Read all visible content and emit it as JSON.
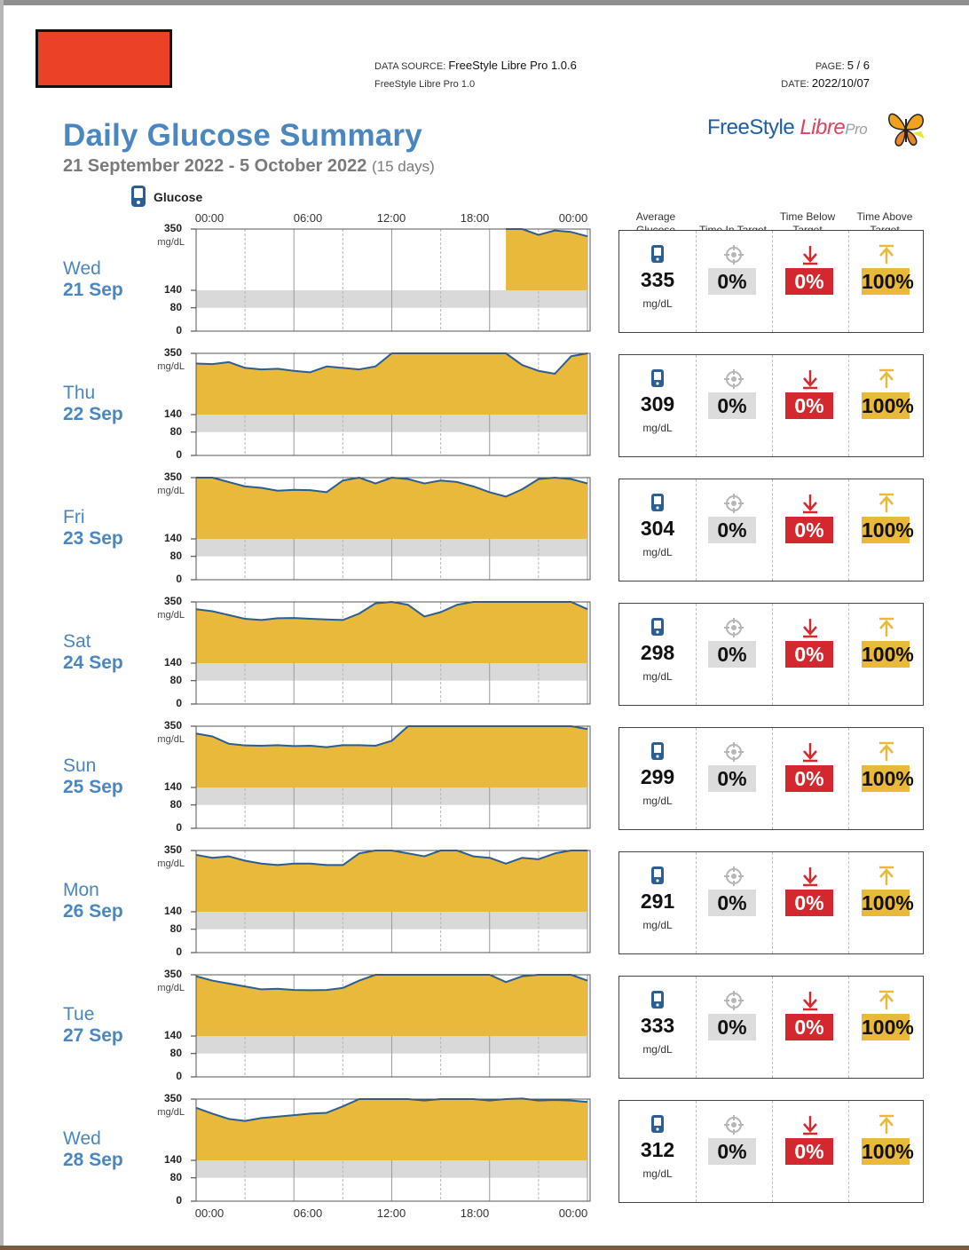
{
  "header": {
    "data_source_label": "DATA SOURCE:",
    "data_source_value": "FreeStyle Libre Pro 1.0.6",
    "data_source_sub": "FreeStyle Libre Pro 1.0",
    "page_label": "PAGE:",
    "page_value": "5 / 6",
    "date_label": "DATE:",
    "date_value": "2022/10/07"
  },
  "logo": {
    "part1": "FreeStyle",
    "part2": "Libre",
    "part3": "Pro"
  },
  "title": "Daily Glucose Summary",
  "subtitle": {
    "range": "21 September 2022 - 5 October 2022",
    "days": "(15 days)"
  },
  "legend": {
    "label": "Glucose"
  },
  "stats_headers": {
    "average": "Average Glucose",
    "in_target": "Time In Target",
    "below": "Time Below Target",
    "above": "Time Above Target"
  },
  "time_axis": [
    "00:00",
    "06:00",
    "12:00",
    "18:00",
    "00:00"
  ],
  "y_axis": {
    "ticks": [
      "350",
      "140",
      "80",
      "0"
    ],
    "unit": "mg/dL"
  },
  "colors": {
    "accent_blue": "#4a86c0",
    "fill": "#e9b93c",
    "line": "#2b5e92",
    "target_band": "#d9d9d9",
    "below_red": "#d2282e",
    "above_amber": "#e9b93c"
  },
  "chart_data": [
    {
      "type": "area",
      "weekday": "Wed",
      "date": "21 Sep",
      "x_hours": [
        0,
        2,
        4,
        6,
        8,
        10,
        12,
        14,
        16,
        18,
        20,
        22,
        24
      ],
      "values": [
        null,
        null,
        null,
        null,
        null,
        null,
        null,
        null,
        null,
        null,
        null,
        null,
        null
      ],
      "ylim": [
        0,
        350
      ],
      "target_range": [
        80,
        140
      ],
      "average": "335",
      "unit": "mg/dL",
      "time_in_target": "0%",
      "time_below": "0%",
      "time_above": "100%"
    },
    {
      "type": "area",
      "weekday": "Thu",
      "date": "22 Sep",
      "x_hours": [],
      "values": [],
      "ylim": [
        0,
        350
      ],
      "target_range": [
        80,
        140
      ],
      "average": "309",
      "unit": "mg/dL",
      "time_in_target": "0%",
      "time_below": "0%",
      "time_above": "100%"
    },
    {
      "type": "area",
      "weekday": "Fri",
      "date": "23 Sep",
      "x_hours": [],
      "values": [],
      "ylim": [
        0,
        350
      ],
      "target_range": [
        80,
        140
      ],
      "average": "304",
      "unit": "mg/dL",
      "time_in_target": "0%",
      "time_below": "0%",
      "time_above": "100%"
    },
    {
      "type": "area",
      "weekday": "Sat",
      "date": "24 Sep",
      "x_hours": [],
      "values": [],
      "ylim": [
        0,
        350
      ],
      "target_range": [
        80,
        140
      ],
      "average": "298",
      "unit": "mg/dL",
      "time_in_target": "0%",
      "time_below": "0%",
      "time_above": "100%"
    },
    {
      "type": "area",
      "weekday": "Sun",
      "date": "25 Sep",
      "x_hours": [],
      "values": [],
      "ylim": [
        0,
        350
      ],
      "target_range": [
        80,
        140
      ],
      "average": "299",
      "unit": "mg/dL",
      "time_in_target": "0%",
      "time_below": "0%",
      "time_above": "100%"
    },
    {
      "type": "area",
      "weekday": "Mon",
      "date": "26 Sep",
      "x_hours": [],
      "values": [],
      "ylim": [
        0,
        350
      ],
      "target_range": [
        80,
        140
      ],
      "average": "291",
      "unit": "mg/dL",
      "time_in_target": "0%",
      "time_below": "0%",
      "time_above": "100%"
    },
    {
      "type": "area",
      "weekday": "Tue",
      "date": "27 Sep",
      "x_hours": [],
      "values": [],
      "ylim": [
        0,
        350
      ],
      "target_range": [
        80,
        140
      ],
      "average": "333",
      "unit": "mg/dL",
      "time_in_target": "0%",
      "time_below": "0%",
      "time_above": "100%"
    },
    {
      "type": "area",
      "weekday": "Wed",
      "date": "28 Sep",
      "x_hours": [],
      "values": [],
      "ylim": [
        0,
        350
      ],
      "target_range": [
        80,
        140
      ],
      "average": "312",
      "unit": "mg/dL",
      "time_in_target": "0%",
      "time_below": "0%",
      "time_above": "100%"
    }
  ]
}
